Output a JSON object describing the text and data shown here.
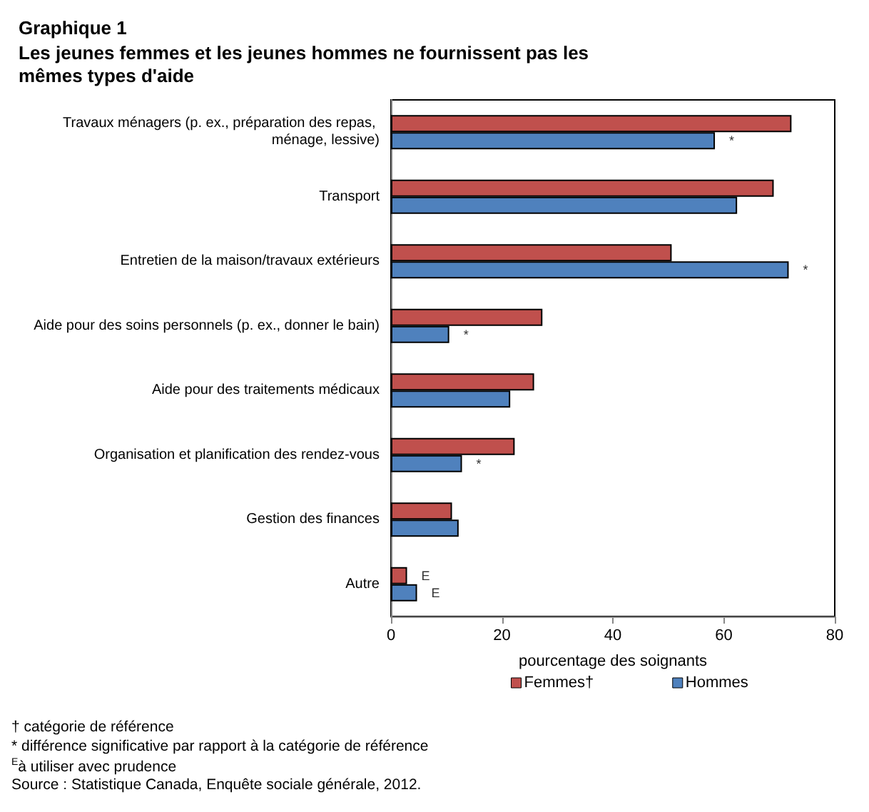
{
  "chart_data": {
    "type": "bar",
    "orientation": "horizontal",
    "title": "Graphique 1",
    "subtitle": "Les jeunes femmes et les jeunes hommes ne fournissent pas les mêmes types d'aide",
    "xlabel": "pourcentage des soignants",
    "categories": [
      "Travaux ménagers (p. ex., préparation des repas, ménage, lessive)",
      "Transport",
      "Entretien de la maison/travaux extérieurs",
      "Aide pour des soins personnels (p. ex., donner le bain)",
      "Aide pour des traitements médicaux",
      "Organisation et planification des rendez-vous",
      "Gestion des finances",
      "Autre"
    ],
    "series": [
      {
        "name": "Femmes†",
        "color": "#c0504d",
        "values": [
          72.2,
          69.0,
          50.6,
          27.3,
          25.8,
          22.3,
          11.0,
          2.9
        ],
        "value_labels": [
          null,
          null,
          null,
          null,
          null,
          null,
          null,
          "E"
        ]
      },
      {
        "name": "Hommes",
        "color": "#4f81bd",
        "values": [
          58.4,
          62.4,
          71.7,
          10.5,
          21.5,
          12.8,
          12.2,
          4.7
        ],
        "value_labels": [
          "*",
          null,
          "*",
          "*",
          null,
          "*",
          null,
          "E"
        ]
      }
    ],
    "xlim": [
      0,
      80
    ],
    "xticks": [
      0,
      20,
      40,
      60,
      80
    ],
    "legend": "bottom",
    "annotations": [
      "† catégorie de référence",
      "* différence significative par rapport à la catégorie de référence",
      "$^{E}$à utiliser avec prudence",
      "Source : Statistique Canada, Enquête sociale générale, 2012."
    ]
  }
}
